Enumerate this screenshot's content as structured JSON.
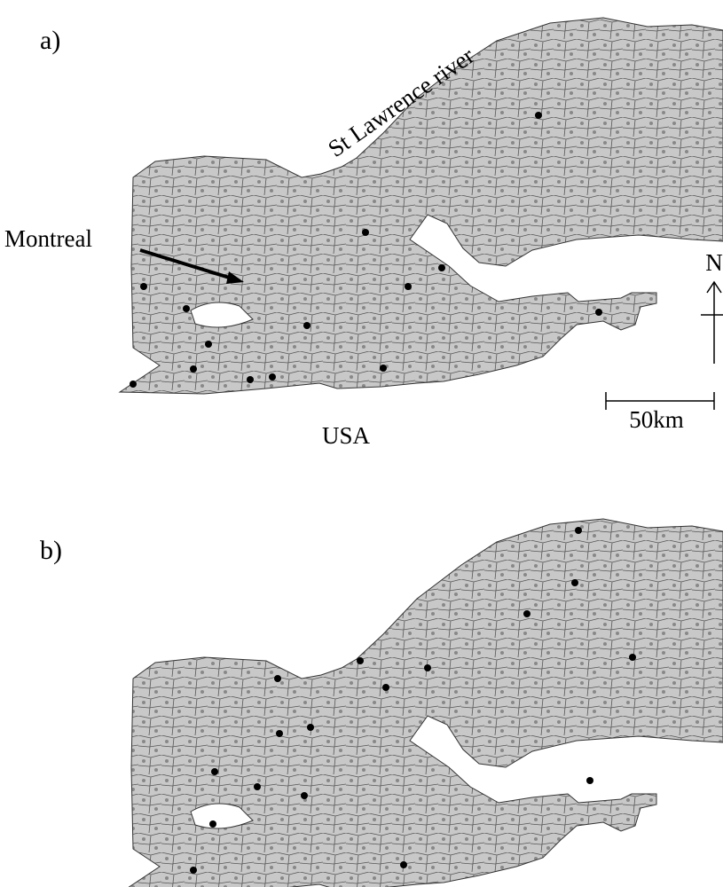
{
  "panels": [
    {
      "label": "a)"
    },
    {
      "label": "b)"
    }
  ],
  "annotations": {
    "river": "St Lawrence river",
    "city": "Montreal",
    "country": "USA"
  },
  "north_arrow": {
    "label": "N"
  },
  "scale_bar": {
    "label": "50km"
  }
}
